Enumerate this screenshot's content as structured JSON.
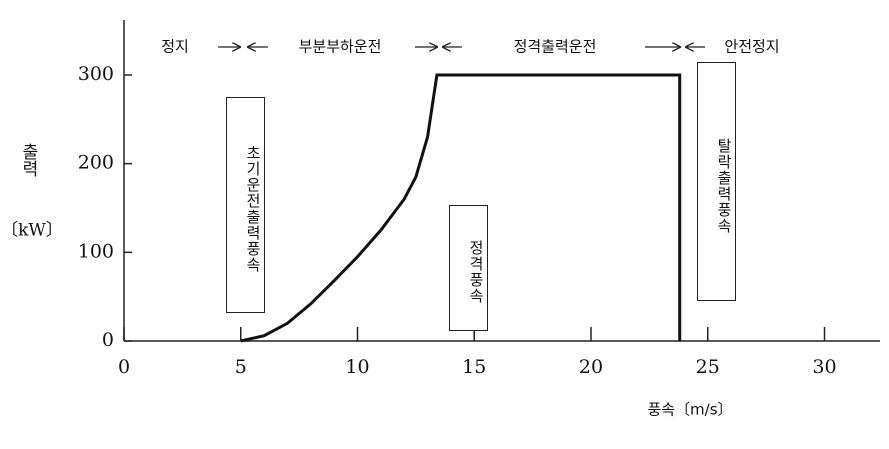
{
  "chart_data": {
    "type": "line",
    "x": [
      5,
      6,
      7,
      8,
      9,
      10,
      11,
      12,
      12.5,
      13,
      13.4,
      23.8,
      23.8
    ],
    "values": [
      0,
      6,
      20,
      42,
      68,
      95,
      125,
      160,
      185,
      230,
      300,
      300,
      0
    ],
    "color": "#111111",
    "xlim": [
      0,
      32.5
    ],
    "xticks": [
      0,
      5,
      10,
      15,
      20,
      25,
      30
    ],
    "ylim": [
      0,
      362
    ],
    "yticks": [
      0,
      100,
      200,
      300
    ],
    "ylabel": "출력",
    "yunit": "〔kW〕",
    "xlabel": "풍속〔m/s〕",
    "phases": [
      "정지",
      "부분부하운전",
      "정격출력운전",
      "안전정지"
    ],
    "boxes": [
      "초기운전출력풍속",
      "정격풍속",
      "탈락출력풍속"
    ]
  }
}
